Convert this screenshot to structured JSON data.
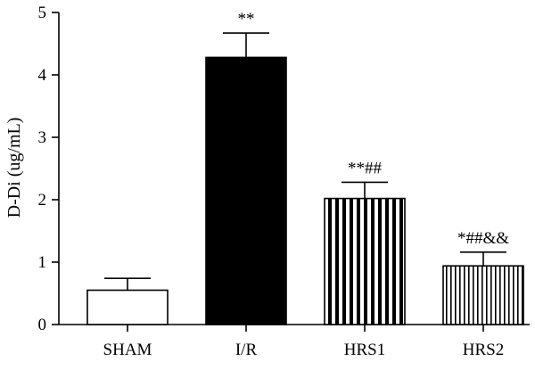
{
  "chart_data": {
    "type": "bar",
    "title": "",
    "xlabel": "",
    "ylabel": "D-Di (ug/mL)",
    "ylim": [
      0,
      5
    ],
    "yticks": [
      0,
      1,
      2,
      3,
      4,
      5
    ],
    "grid": false,
    "categories": [
      "SHAM",
      "I/R",
      "HRS1",
      "HRS2"
    ],
    "values": [
      0.55,
      4.28,
      2.02,
      0.94
    ],
    "errors": [
      0.19,
      0.39,
      0.26,
      0.22
    ],
    "annotations": [
      "",
      "**",
      "**##",
      "*##&&"
    ],
    "fills": [
      "white",
      "black",
      "vertical-stripes-wide",
      "vertical-stripes-narrow"
    ],
    "colors": {
      "stroke": "#000000",
      "fill_dark": "#000000",
      "background": "#ffffff"
    }
  }
}
